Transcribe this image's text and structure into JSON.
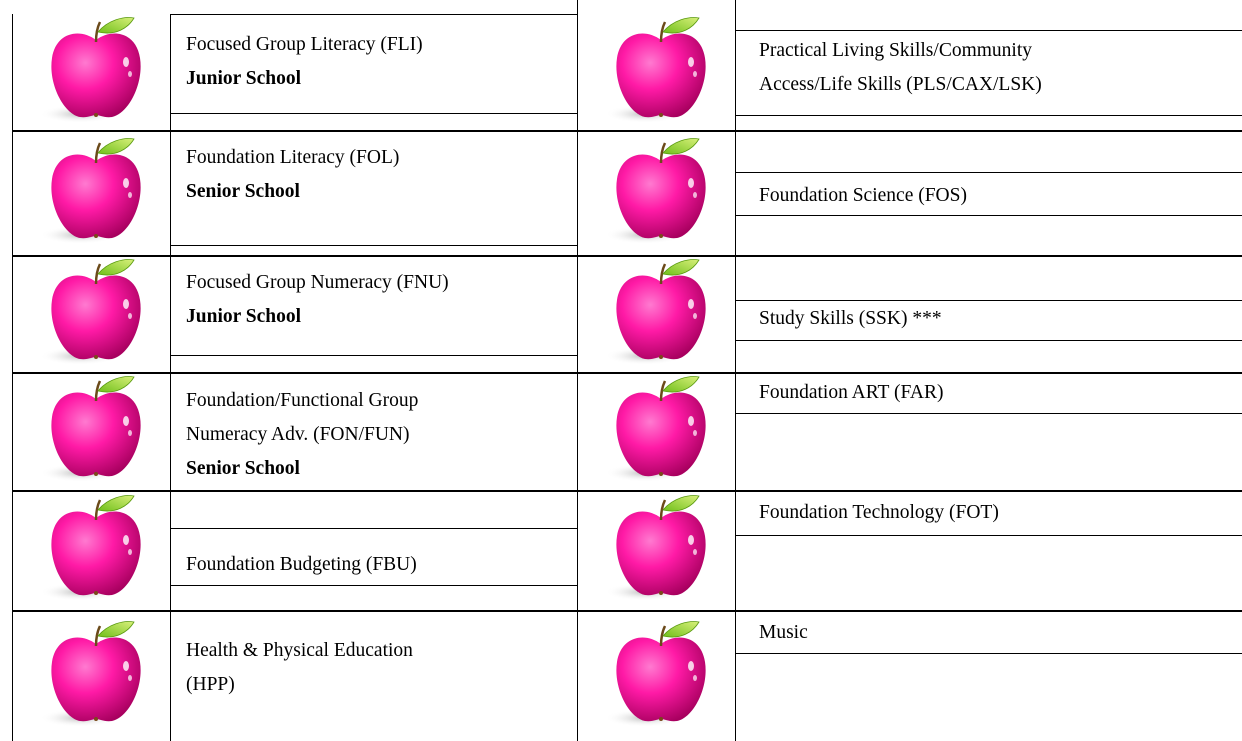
{
  "rows": [
    {
      "left": {
        "lines": [
          "Focused Group Literacy (FLI)"
        ],
        "school": "Junior School"
      },
      "right": {
        "lines": [
          "Practical Living Skills/Community",
          "Access/Life Skills (PLS/CAX/LSK)"
        ]
      }
    },
    {
      "left": {
        "lines": [
          "Foundation Literacy (FOL)"
        ],
        "school": "Senior School"
      },
      "right": {
        "lines": [
          "Foundation Science (FOS)"
        ]
      }
    },
    {
      "left": {
        "lines": [
          "Focused Group Numeracy (FNU)"
        ],
        "school": "Junior School"
      },
      "right": {
        "lines": [
          "Study Skills (SSK) ***"
        ]
      }
    },
    {
      "left": {
        "lines": [
          "Foundation/Functional Group",
          "Numeracy Adv. (FON/FUN)"
        ],
        "school": "Senior School"
      },
      "right": {
        "lines": [
          "Foundation ART (FAR)"
        ]
      }
    },
    {
      "left": {
        "lines": [
          "Foundation Budgeting (FBU)"
        ]
      },
      "right": {
        "lines": [
          "Foundation Technology (FOT)"
        ]
      }
    },
    {
      "left": {
        "lines": [
          "Health & Physical Education",
          "(HPP)"
        ]
      },
      "right": {
        "lines": [
          "Music"
        ]
      }
    }
  ]
}
